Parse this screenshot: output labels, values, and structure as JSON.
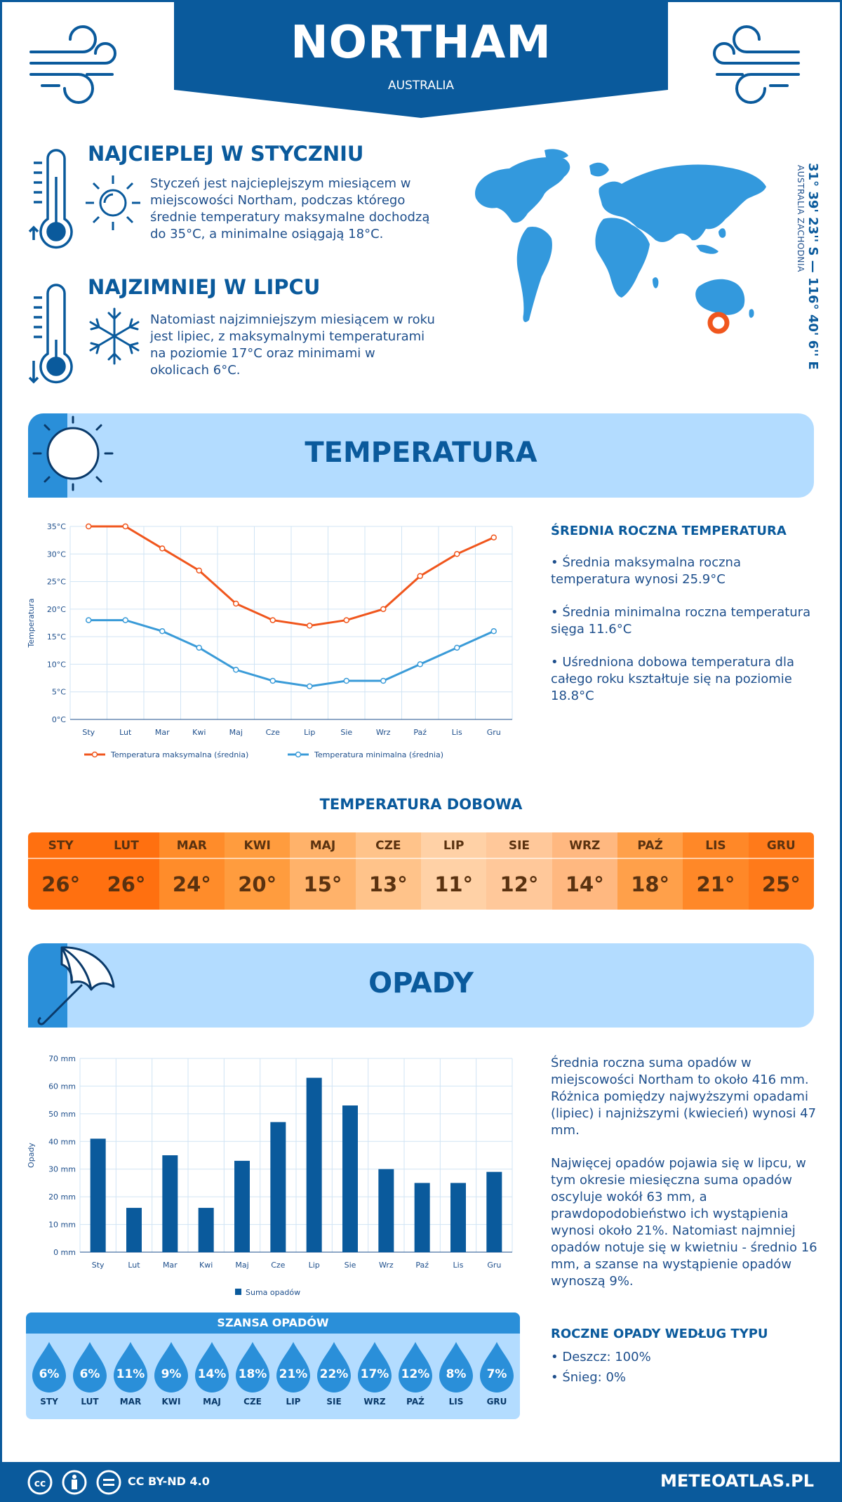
{
  "header": {
    "city": "NORTHAM",
    "country": "AUSTRALIA"
  },
  "warmest": {
    "title": "NAJCIEPLEJ W STYCZNIU",
    "text": "Styczeń jest najcieplejszym miesiącem w miejscowości Northam, podczas którego średnie temperatury maksymalne dochodzą do 35°C, a minimalne osiągają 18°C."
  },
  "coldest": {
    "title": "NAJZIMNIEJ W LIPCU",
    "text": "Natomiast najzimniejszym miesiącem w roku jest lipiec, z maksymalnymi temperaturami na poziomie 17°C oraz minimami w okolicach 6°C."
  },
  "location": {
    "coords": "31° 39' 23'' S — 116° 40' 6'' E",
    "region": "AUSTRALIA ZACHODNIA"
  },
  "temperature_section": {
    "title": "TEMPERATURA",
    "side_heading": "ŚREDNIA ROCZNA TEMPERATURA",
    "bullet1": "• Średnia maksymalna roczna temperatura wynosi 25.9°C",
    "bullet2": "• Średnia minimalna roczna temperatura sięga 11.6°C",
    "bullet3": "• Uśredniona dobowa temperatura dla całego roku kształtuje się na poziomie 18.8°C"
  },
  "daily": {
    "title": "TEMPERATURA DOBOWA",
    "months": [
      "STY",
      "LUT",
      "MAR",
      "KWI",
      "MAJ",
      "CZE",
      "LIP",
      "SIE",
      "WRZ",
      "PAŹ",
      "LIS",
      "GRU"
    ],
    "values": [
      "26°",
      "26°",
      "24°",
      "20°",
      "15°",
      "13°",
      "11°",
      "12°",
      "14°",
      "18°",
      "21°",
      "25°"
    ],
    "colors": [
      "#ff7010",
      "#ff7010",
      "#ff8c2a",
      "#ff9c3e",
      "#ffb26a",
      "#ffc38a",
      "#ffd1a6",
      "#ffc89a",
      "#ffb880",
      "#ffa04a",
      "#ff8828",
      "#ff7a1a"
    ]
  },
  "precip_section": {
    "title": "OPADY",
    "text1": "Średnia roczna suma opadów w miejscowości Northam to około 416 mm. Różnica pomiędzy najwyższymi opadami (lipiec) i najniższymi (kwiecień) wynosi 47 mm.",
    "text2": "Najwięcej opadów pojawia się w lipcu, w tym okresie miesięczna suma opadów oscyluje wokół 63 mm, a prawdopodobieństwo ich wystąpienia wynosi około 21%. Natomiast najmniej opadów notuje się w kwietniu - średnio 16 mm, a szanse na wystąpienie opadów wynoszą 9%.",
    "type_heading": "ROCZNE OPADY WEDŁUG TYPU",
    "rain": "• Deszcz: 100%",
    "snow": "• Śnieg: 0%"
  },
  "chance": {
    "title": "SZANSA OPADÓW",
    "months": [
      "STY",
      "LUT",
      "MAR",
      "KWI",
      "MAJ",
      "CZE",
      "LIP",
      "SIE",
      "WRZ",
      "PAŹ",
      "LIS",
      "GRU"
    ],
    "values": [
      "6%",
      "6%",
      "11%",
      "9%",
      "14%",
      "18%",
      "21%",
      "22%",
      "17%",
      "12%",
      "8%",
      "7%"
    ]
  },
  "footer": {
    "license": "CC BY-ND 4.0",
    "site": "METEOATLAS.PL"
  },
  "colors": {
    "primary": "#0a5a9c",
    "light_blue": "#b3dcff",
    "accent_blue": "#2a8fd9",
    "max_line": "#f0561d",
    "min_line": "#3a9bd8",
    "bar": "#0a5a9c"
  },
  "chart_data": [
    {
      "type": "line",
      "categories": [
        "Sty",
        "Lut",
        "Mar",
        "Kwi",
        "Maj",
        "Cze",
        "Lip",
        "Sie",
        "Wrz",
        "Paź",
        "Lis",
        "Gru"
      ],
      "series": [
        {
          "name": "Temperatura maksymalna (średnia)",
          "values": [
            35,
            35,
            31,
            27,
            21,
            18,
            17,
            18,
            20,
            26,
            30,
            33
          ]
        },
        {
          "name": "Temperatura minimalna (średnia)",
          "values": [
            18,
            18,
            16,
            13,
            9,
            7,
            6,
            7,
            7,
            10,
            13,
            16
          ]
        }
      ],
      "ylabel": "Temperatura",
      "yticks": [
        "0°C",
        "5°C",
        "10°C",
        "15°C",
        "20°C",
        "25°C",
        "30°C",
        "35°C"
      ],
      "ylim": [
        0,
        35
      ],
      "grid": true,
      "legend": "bottom"
    },
    {
      "type": "bar",
      "categories": [
        "Sty",
        "Lut",
        "Mar",
        "Kwi",
        "Maj",
        "Cze",
        "Lip",
        "Sie",
        "Wrz",
        "Paź",
        "Lis",
        "Gru"
      ],
      "series": [
        {
          "name": "Suma opadów",
          "values": [
            41,
            16,
            35,
            16,
            33,
            47,
            63,
            53,
            30,
            25,
            25,
            29
          ]
        }
      ],
      "ylabel": "Opady",
      "yticks": [
        "0 mm",
        "10 mm",
        "20 mm",
        "30 mm",
        "40 mm",
        "50 mm",
        "60 mm",
        "70 mm"
      ],
      "ylim": [
        0,
        70
      ],
      "grid": true,
      "legend": "bottom"
    }
  ]
}
